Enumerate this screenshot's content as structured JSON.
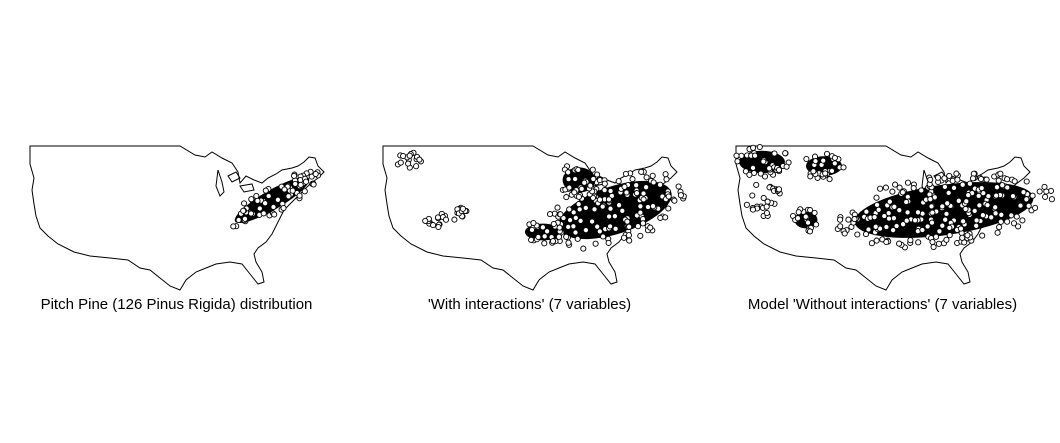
{
  "figure": {
    "panels": [
      {
        "id": "distribution",
        "caption": "Pitch Pine (126 Pinus Rigida) distribution",
        "density": "observed"
      },
      {
        "id": "with-interactions",
        "caption": "'With interactions' (7 variables)",
        "density": "medium"
      },
      {
        "id": "without-interactions",
        "caption": "Model 'Without interactions' (7 variables)",
        "density": "high"
      }
    ]
  },
  "colors": {
    "outline": "#000000",
    "points": "#000000",
    "background": "#ffffff"
  },
  "icons": {
    "map": "us-outline-map",
    "marker": "open-circle-marker"
  }
}
